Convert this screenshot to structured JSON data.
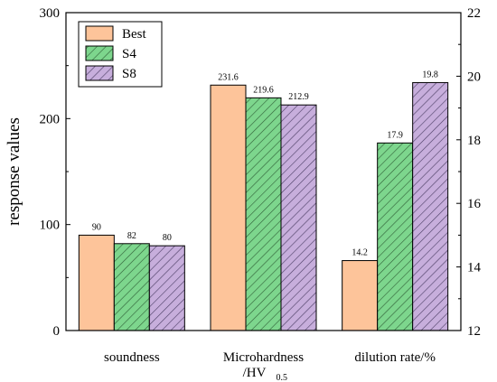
{
  "chart_data": {
    "type": "bar",
    "categories": [
      "soundness",
      "Microhardness",
      "dilution rate/%"
    ],
    "category_sublabel": {
      "index": 1,
      "text": "/HV",
      "subscript": "0.5"
    },
    "series": [
      {
        "name": "Best",
        "values": [
          90,
          231.6,
          14.2
        ],
        "labels": [
          "90",
          "231.6",
          "14.2"
        ],
        "color": "#FDC49A",
        "hatch": "none"
      },
      {
        "name": "S4",
        "values": [
          82,
          219.6,
          17.9
        ],
        "labels": [
          "82",
          "219.6",
          "17.9"
        ],
        "color": "#7DD68D",
        "hatch": "diagonal"
      },
      {
        "name": "S8",
        "values": [
          80,
          212.9,
          19.8
        ],
        "labels": [
          "80",
          "212.9",
          "19.8"
        ],
        "color": "#C7AEDC",
        "hatch": "diagonal"
      }
    ],
    "ylabel": "response values",
    "ylim": [
      0,
      300
    ],
    "yticks": [
      "0",
      "100",
      "200",
      "300"
    ],
    "y2lim": [
      12,
      22
    ],
    "y2ticks": [
      "12",
      "14",
      "16",
      "18",
      "20",
      "22"
    ],
    "dual_axis_category_index": 2,
    "legend_position": "top-left",
    "grid": false
  }
}
